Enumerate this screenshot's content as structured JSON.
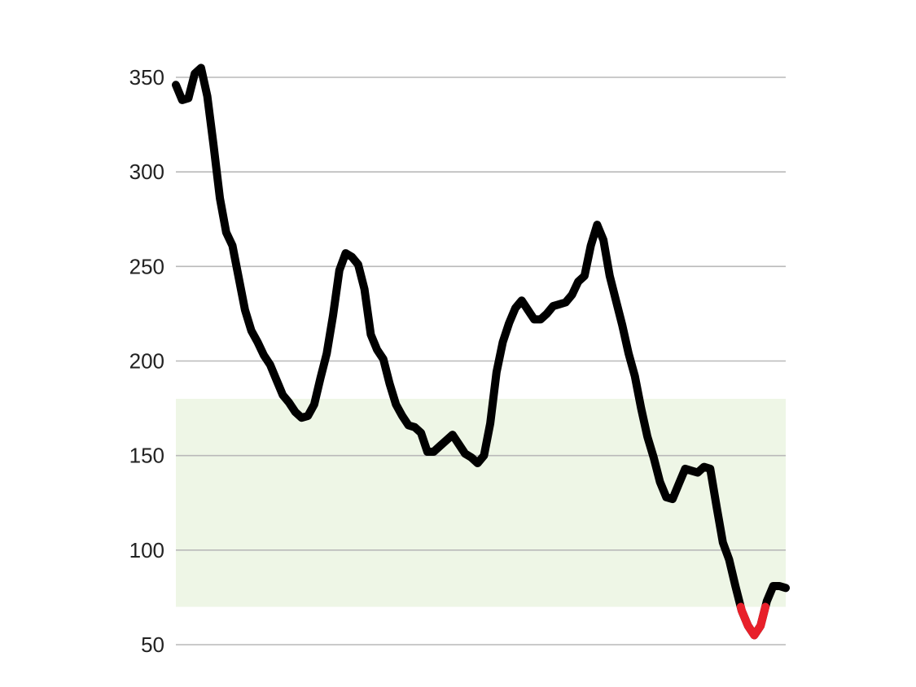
{
  "chart_data": {
    "type": "line",
    "title": "",
    "xlabel": "",
    "ylabel": "",
    "ylim": [
      50,
      350
    ],
    "y_ticks": [
      350,
      300,
      250,
      200,
      150,
      100,
      50
    ],
    "y_tick_labels": [
      "350",
      "300",
      "250",
      "200",
      "150",
      "100",
      "50"
    ],
    "grid": true,
    "band": {
      "from": 70,
      "to": 180,
      "color": "#eef6e6"
    },
    "line_color": "#000000",
    "below_band_color": "#e8202a",
    "series": [
      {
        "values": [
          346,
          338,
          339,
          352,
          355,
          340,
          314,
          286,
          268,
          261,
          244,
          227,
          216,
          210,
          203,
          198,
          190,
          182,
          178,
          173,
          170,
          171,
          177,
          191,
          204,
          224,
          248,
          257,
          255,
          251,
          238,
          214,
          206,
          201,
          188,
          177,
          171,
          166,
          165,
          162,
          152,
          152,
          155,
          158,
          161,
          156,
          151,
          149,
          146,
          150,
          167,
          194,
          210,
          220,
          228,
          232,
          227,
          222,
          222,
          225,
          229,
          230,
          231,
          235,
          242,
          245,
          261,
          272,
          264,
          245,
          232,
          219,
          204,
          192,
          175,
          160,
          149,
          136,
          128,
          127,
          135,
          143,
          142,
          141,
          144,
          143,
          123,
          104,
          95,
          81,
          68,
          60,
          55,
          60,
          73,
          81,
          81,
          80
        ]
      }
    ]
  }
}
